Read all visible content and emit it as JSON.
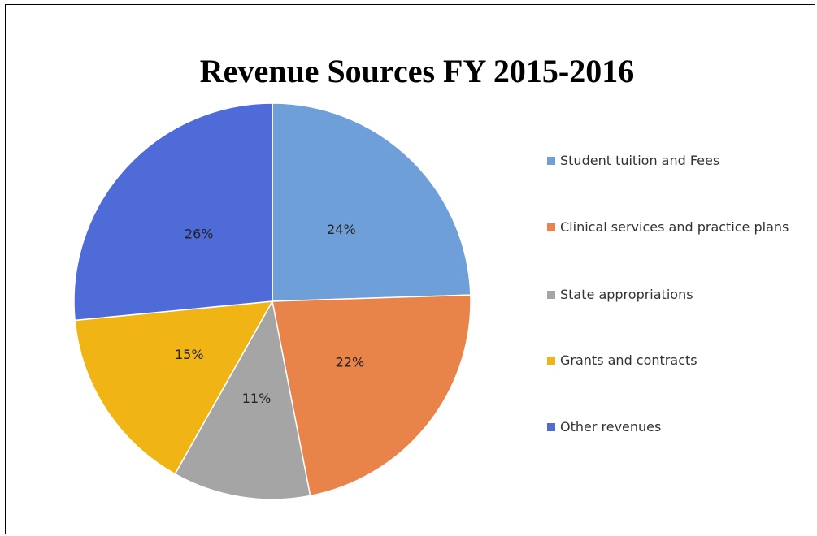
{
  "chart_data": {
    "type": "pie",
    "title": "Revenue Sources FY 2015-2016",
    "categories": [
      "Student tuition and Fees",
      "Clinical services and practice plans",
      "State appropriations",
      "Grants and contracts",
      "Other revenues"
    ],
    "values": [
      24,
      22,
      11,
      15,
      26
    ],
    "value_labels": [
      "24%",
      "22%",
      "11%",
      "15%",
      "26%"
    ],
    "colors": [
      "#6f9fd8",
      "#e8834a",
      "#a5a5a5",
      "#f0b515",
      "#4f6bd8"
    ],
    "legend": "right"
  }
}
